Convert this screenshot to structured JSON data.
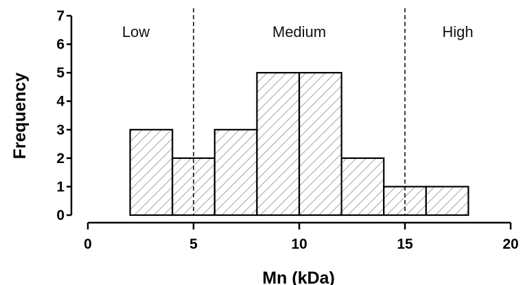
{
  "chart_data": {
    "type": "bar",
    "subtype": "histogram",
    "title": "",
    "xlabel": "Mn (kDa)",
    "ylabel": "Frequency",
    "xlim": [
      0,
      20
    ],
    "ylim": [
      0,
      7
    ],
    "x_ticks": [
      "0",
      "5",
      "10",
      "15",
      "20"
    ],
    "y_ticks": [
      "0",
      "1",
      "2",
      "3",
      "4",
      "5",
      "6",
      "7"
    ],
    "bin_edges": [
      2,
      4,
      6,
      8,
      10,
      12,
      14,
      16,
      18
    ],
    "frequencies": [
      3,
      2,
      3,
      5,
      5,
      2,
      1,
      1
    ],
    "thresholds": [
      5,
      15
    ],
    "regions": [
      "Low",
      "Medium",
      "High"
    ],
    "grid": false,
    "legend": "none",
    "style": {
      "bar_fill": "hatched diagonal",
      "hatch_color": "#8c8c8c",
      "edge_color": "#000000",
      "threshold_line": "dashed"
    }
  }
}
